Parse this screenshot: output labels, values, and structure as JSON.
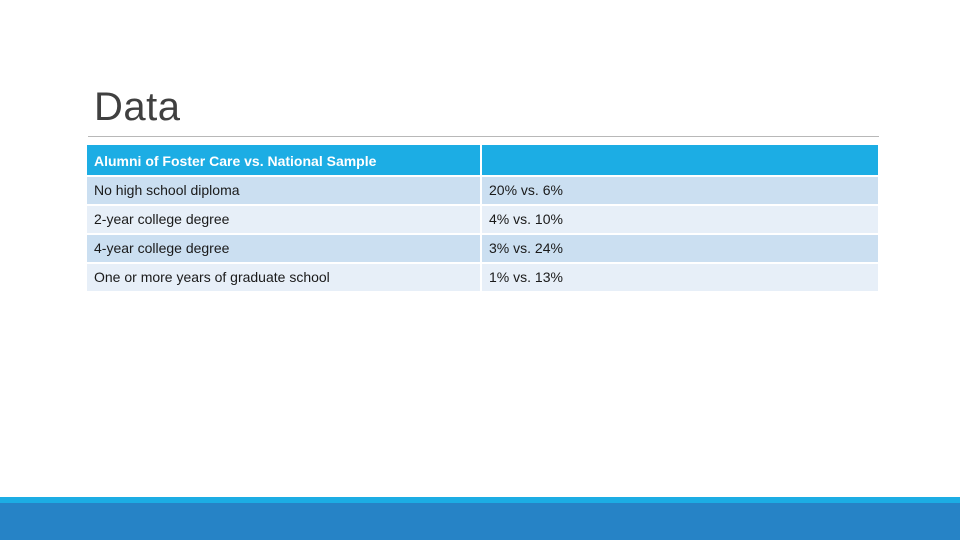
{
  "slide": {
    "title": "Data"
  },
  "table": {
    "header": [
      "Alumni of Foster Care vs. National Sample",
      ""
    ],
    "rows": [
      [
        "No high school diploma",
        "20% vs. 6%"
      ],
      [
        "2-year college degree",
        "4% vs. 10%"
      ],
      [
        "4-year college degree",
        "3% vs. 24%"
      ],
      [
        "One or more years of graduate school",
        "1% vs. 13%"
      ]
    ]
  },
  "colors": {
    "header_bg": "#1cade4",
    "row_odd_bg": "#cbdff1",
    "row_even_bg": "#e7eff8",
    "footer_band": "#2683c6",
    "footer_band_light": "#1cade4"
  }
}
